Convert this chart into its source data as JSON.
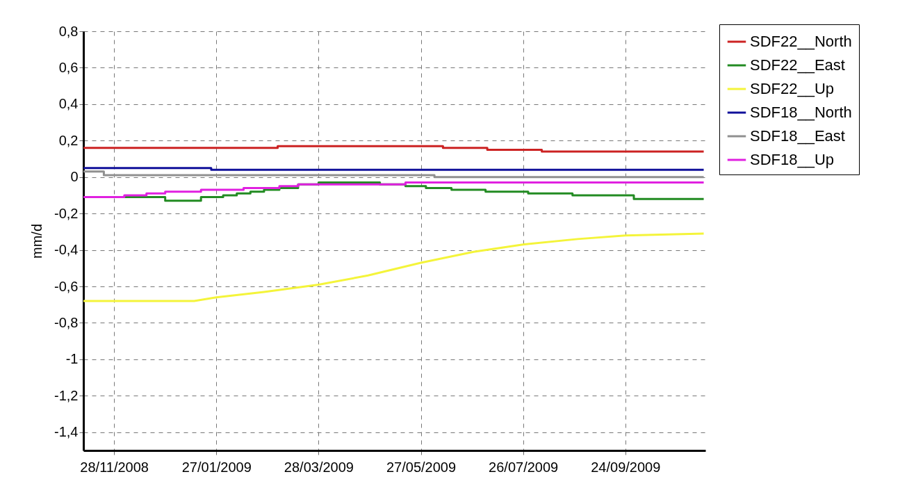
{
  "chart_data": {
    "type": "line",
    "ylabel": "mm/d",
    "xlim": [
      "2008-11-10",
      "2009-11-10"
    ],
    "ylim": [
      -1.5,
      0.8
    ],
    "xticks": [
      {
        "value": "2008-11-28",
        "label": "28/11/2008"
      },
      {
        "value": "2009-01-27",
        "label": "27/01/2009"
      },
      {
        "value": "2009-03-28",
        "label": "28/03/2009"
      },
      {
        "value": "2009-05-27",
        "label": "27/05/2009"
      },
      {
        "value": "2009-07-26",
        "label": "26/07/2009"
      },
      {
        "value": "2009-09-24",
        "label": "24/09/2009"
      }
    ],
    "yticks": [
      {
        "value": 0.8,
        "label": "0,8"
      },
      {
        "value": 0.6,
        "label": "0,6"
      },
      {
        "value": 0.4,
        "label": "0,4"
      },
      {
        "value": 0.2,
        "label": "0,2"
      },
      0,
      {
        "value": -0.2,
        "label": "-0,2"
      },
      {
        "value": -0.4,
        "label": "-0,4"
      },
      {
        "value": -0.6,
        "label": "-0,6"
      },
      {
        "value": -0.8,
        "label": "-0,8"
      },
      -1,
      {
        "value": -1.2,
        "label": "-1,2"
      },
      {
        "value": -1.4,
        "label": "-1,4"
      }
    ],
    "grid": true,
    "legend": "top right",
    "series": [
      {
        "name": "SDF22__North",
        "color": "#cc2222",
        "x": [
          "2008-11-10",
          "2009-03-04",
          "2009-03-04",
          "2009-06-09",
          "2009-06-09",
          "2009-07-05",
          "2009-07-05",
          "2009-08-06",
          "2009-08-06",
          "2009-11-09"
        ],
        "values": [
          0.16,
          0.16,
          0.17,
          0.17,
          0.16,
          0.16,
          0.15,
          0.15,
          0.14,
          0.14
        ]
      },
      {
        "name": "SDF22__East",
        "color": "#228b22",
        "x": [
          "2008-12-04",
          "2008-12-28",
          "2008-12-28",
          "2009-01-18",
          "2009-01-18",
          "2009-01-31",
          "2009-01-31",
          "2009-02-08",
          "2009-02-08",
          "2009-02-16",
          "2009-02-16",
          "2009-02-24",
          "2009-02-24",
          "2009-03-05",
          "2009-03-05",
          "2009-03-16",
          "2009-03-16",
          "2009-03-28",
          "2009-03-28",
          "2009-05-03",
          "2009-05-03",
          "2009-05-18",
          "2009-05-18",
          "2009-05-30",
          "2009-05-30",
          "2009-06-14",
          "2009-06-14",
          "2009-07-04",
          "2009-07-04",
          "2009-07-29",
          "2009-07-29",
          "2009-08-24",
          "2009-08-24",
          "2009-09-29",
          "2009-09-29",
          "2009-11-09"
        ],
        "values": [
          -0.11,
          -0.11,
          -0.13,
          -0.13,
          -0.11,
          -0.11,
          -0.1,
          -0.1,
          -0.09,
          -0.09,
          -0.08,
          -0.08,
          -0.07,
          -0.07,
          -0.06,
          -0.06,
          -0.04,
          -0.04,
          -0.03,
          -0.03,
          -0.04,
          -0.04,
          -0.05,
          -0.05,
          -0.06,
          -0.06,
          -0.07,
          -0.07,
          -0.08,
          -0.08,
          -0.09,
          -0.09,
          -0.1,
          -0.1,
          -0.12,
          -0.12
        ]
      },
      {
        "name": "SDF22__Up",
        "color": "#f4f43a",
        "x": [
          "2008-11-10",
          "2008-12-13",
          "2009-01-14",
          "2009-01-27",
          "2009-02-24",
          "2009-03-28",
          "2009-04-26",
          "2009-05-27",
          "2009-06-27",
          "2009-07-26",
          "2009-08-27",
          "2009-09-24",
          "2009-11-09"
        ],
        "values": [
          -0.68,
          -0.68,
          -0.68,
          -0.66,
          -0.63,
          -0.59,
          -0.54,
          -0.47,
          -0.41,
          -0.37,
          -0.34,
          -0.32,
          -0.31
        ]
      },
      {
        "name": "SDF18__North",
        "color": "#10109a",
        "x": [
          "2008-11-10",
          "2009-01-24",
          "2009-01-24",
          "2009-11-09"
        ],
        "values": [
          0.05,
          0.05,
          0.04,
          0.04
        ]
      },
      {
        "name": "SDF18__East",
        "color": "#909090",
        "x": [
          "2008-11-10",
          "2008-11-22",
          "2008-11-22",
          "2009-06-04",
          "2009-06-04",
          "2009-11-09"
        ],
        "values": [
          0.03,
          0.03,
          0.01,
          0.01,
          0.0,
          0.0
        ]
      },
      {
        "name": "SDF18__Up",
        "color": "#e020e0",
        "x": [
          "2008-11-10",
          "2008-12-04",
          "2008-12-04",
          "2008-12-17",
          "2008-12-17",
          "2008-12-28",
          "2008-12-28",
          "2009-01-18",
          "2009-01-18",
          "2009-02-12",
          "2009-02-12",
          "2009-03-05",
          "2009-03-05",
          "2009-03-16",
          "2009-03-16",
          "2009-05-18",
          "2009-05-18",
          "2009-11-09"
        ],
        "values": [
          -0.11,
          -0.11,
          -0.1,
          -0.1,
          -0.09,
          -0.09,
          -0.08,
          -0.08,
          -0.07,
          -0.07,
          -0.06,
          -0.06,
          -0.05,
          -0.05,
          -0.04,
          -0.04,
          -0.03,
          -0.03
        ]
      }
    ]
  }
}
